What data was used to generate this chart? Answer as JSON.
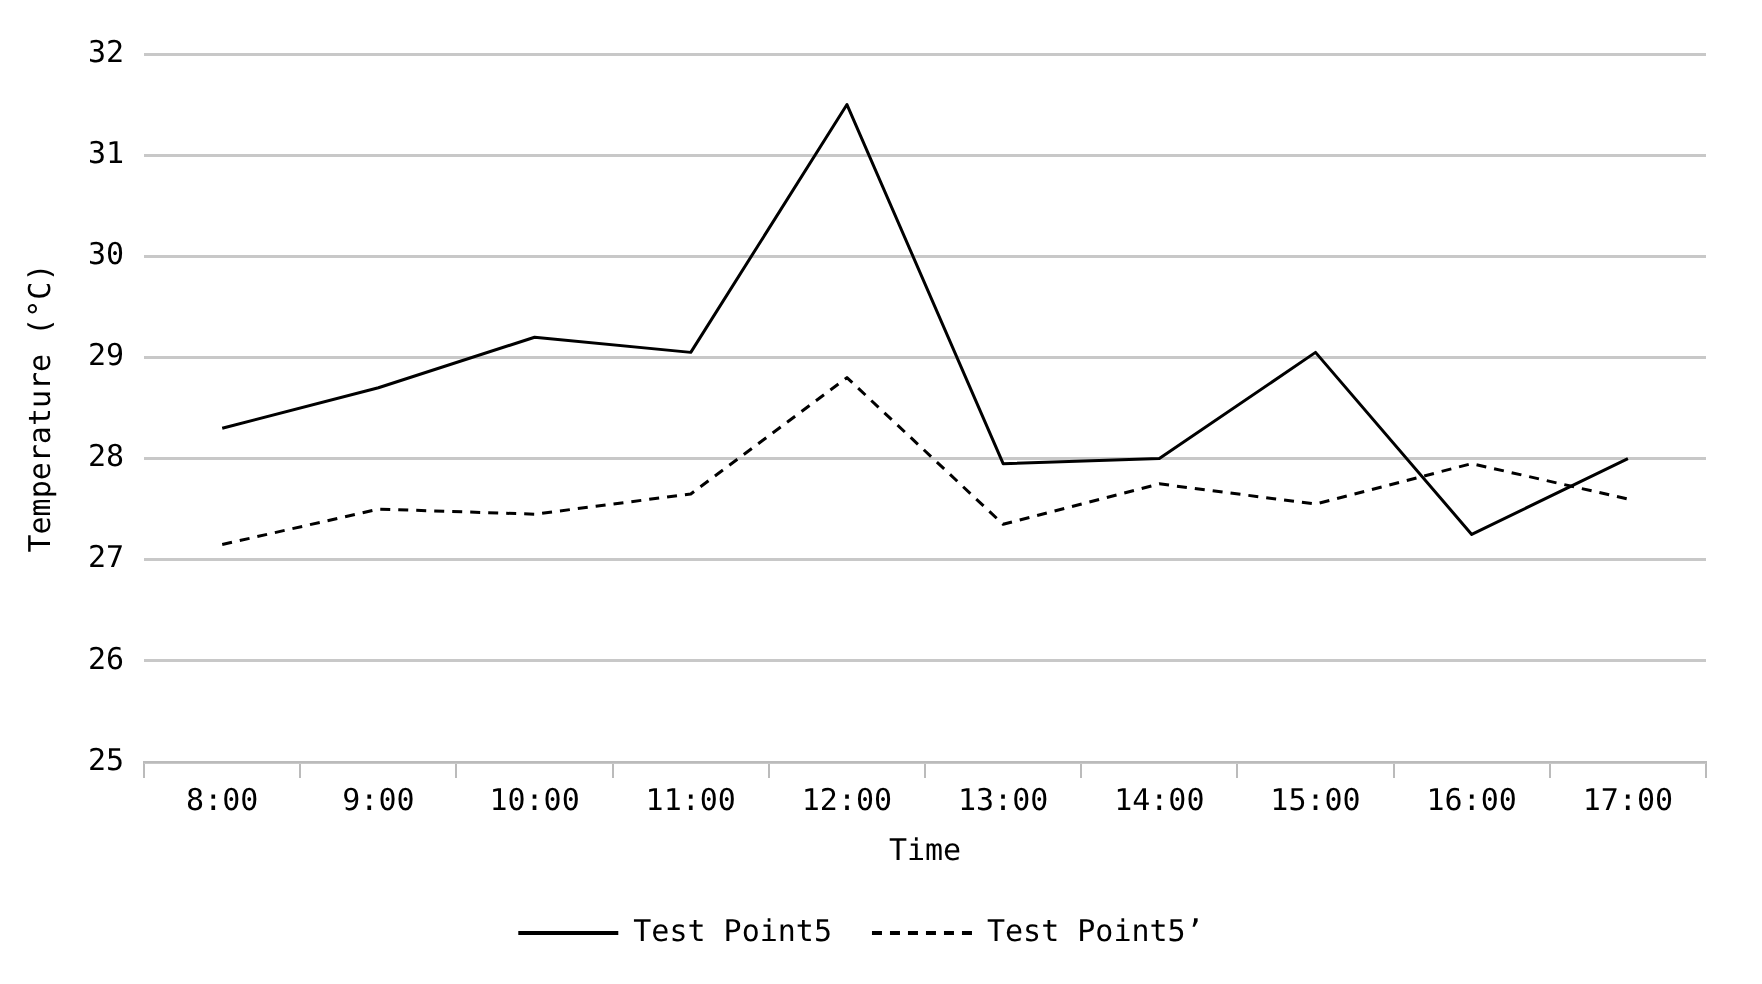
{
  "chart_data": {
    "type": "line",
    "xlabel": "Time",
    "ylabel": "Temperature (°C)",
    "categories": [
      "8:00",
      "9:00",
      "10:00",
      "11:00",
      "12:00",
      "13:00",
      "14:00",
      "15:00",
      "16:00",
      "17:00"
    ],
    "series": [
      {
        "name": "Test Point5",
        "color": "#000000",
        "line_style": "solid",
        "values": [
          28.3,
          28.7,
          29.2,
          29.05,
          31.5,
          27.95,
          28.0,
          29.05,
          27.25,
          28.0
        ]
      },
      {
        "name": "Test Point5’",
        "color": "#000000",
        "line_style": "dashed",
        "values": [
          27.15,
          27.5,
          27.45,
          27.65,
          28.8,
          27.35,
          27.75,
          27.55,
          27.95,
          27.6
        ]
      }
    ],
    "ylim": [
      25,
      32
    ],
    "yticks": [
      25,
      26,
      27,
      28,
      29,
      30,
      31,
      32
    ],
    "grid": "y",
    "legend": "bottom",
    "marker": "none"
  }
}
